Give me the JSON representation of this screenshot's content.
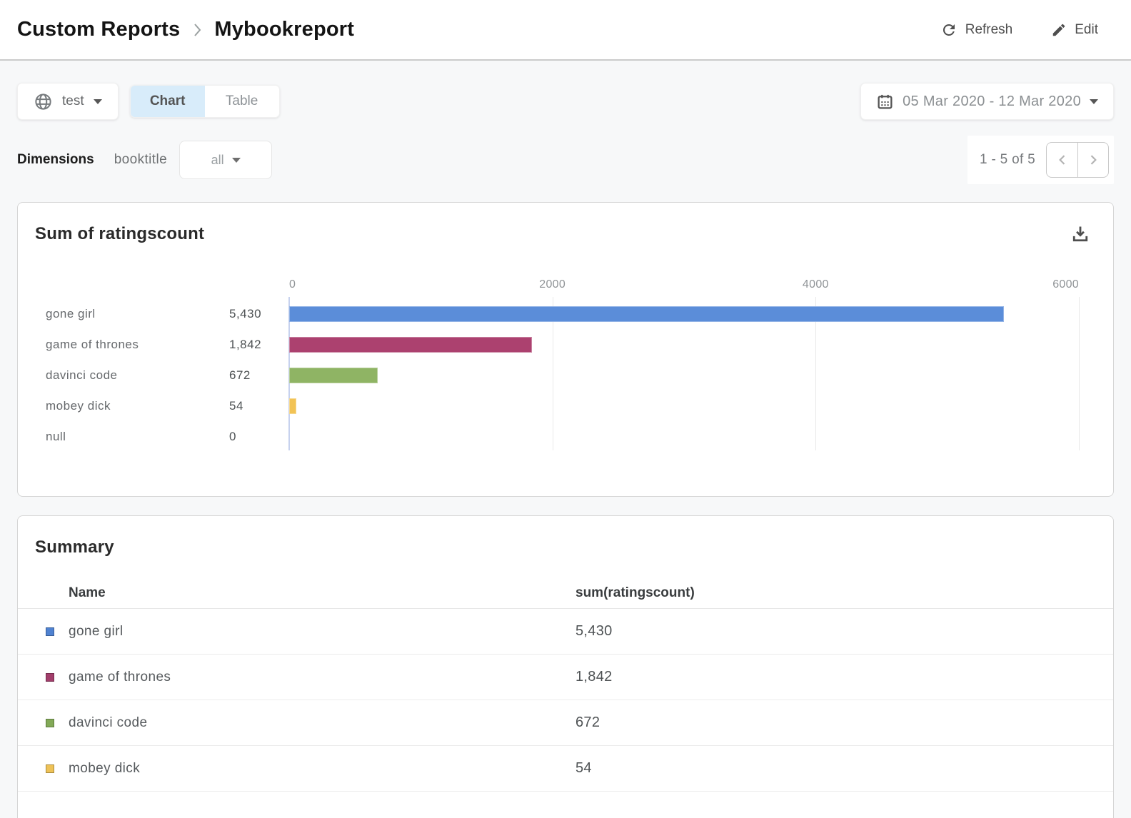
{
  "header": {
    "breadcrumb": {
      "parent": "Custom Reports",
      "current": "Mybookreport"
    },
    "refresh_label": "Refresh",
    "edit_label": "Edit"
  },
  "toolbar": {
    "scope": {
      "label": "test"
    },
    "view_tabs": [
      {
        "label": "Chart"
      },
      {
        "label": "Table"
      }
    ],
    "active_tab": "Chart",
    "date_range": "05 Mar 2020 - 12 Mar 2020"
  },
  "filters": {
    "dimensions_label": "Dimensions",
    "dimension_field": "booktitle",
    "dimension_filter_value": "all"
  },
  "pagination": {
    "range_text": "1 - 5 of 5"
  },
  "chart_card": {
    "title": "Sum of ratingscount"
  },
  "chart_data": {
    "type": "bar",
    "orientation": "horizontal",
    "title": "Sum of ratingscount",
    "categories": [
      "gone girl",
      "game of thrones",
      "davinci code",
      "mobey dick",
      "null"
    ],
    "values": [
      5430,
      1842,
      672,
      54,
      0
    ],
    "value_labels": [
      "5,430",
      "1,842",
      "672",
      "54",
      "0"
    ],
    "bar_colors": [
      "#5b8dd9",
      "#ac416f",
      "#8fb464",
      "#f2c355",
      "#bbbbbb"
    ],
    "xlim": [
      0,
      6000
    ],
    "x_ticks": [
      "0",
      "2000",
      "4000",
      "6000"
    ],
    "grid": true,
    "legend": false,
    "xlabel": "",
    "ylabel": ""
  },
  "summary": {
    "title": "Summary",
    "columns": [
      "Name",
      "sum(ratingscount)"
    ],
    "rows": [
      {
        "name": "gone girl",
        "value": "5,430",
        "color": "#4f82d1"
      },
      {
        "name": "game of thrones",
        "value": "1,842",
        "color": "#a23e6b"
      },
      {
        "name": "davinci code",
        "value": "672",
        "color": "#82a957"
      },
      {
        "name": "mobey dick",
        "value": "54",
        "color": "#eec257"
      }
    ]
  },
  "colors": {
    "active_tab_bg": "#d8ecfa",
    "axis_line": "#c7d2ee",
    "gridline": "#e9e9e9"
  }
}
